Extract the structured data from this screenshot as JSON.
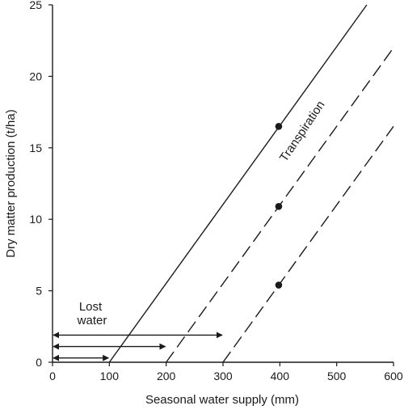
{
  "chart_data": {
    "type": "line",
    "title": "",
    "xlabel": "Seasonal water supply (mm)",
    "ylabel": "Dry matter production (t/ha)",
    "xlim": [
      0,
      600
    ],
    "ylim": [
      0,
      25
    ],
    "x_ticks": [
      0,
      100,
      200,
      300,
      400,
      500,
      600
    ],
    "y_ticks": [
      0,
      5,
      10,
      15,
      20,
      25
    ],
    "grid": false,
    "legend": "none",
    "series": [
      {
        "style": "solid",
        "color": "#1a1a1a",
        "x": [
          100,
          553
        ],
        "y": [
          0,
          25
        ],
        "marker_x": 398,
        "marker_y": 16.5
      },
      {
        "style": "dashed",
        "color": "#1a1a1a",
        "x": [
          200,
          600
        ],
        "y": [
          0,
          22
        ],
        "marker_x": 398,
        "marker_y": 10.9
      },
      {
        "style": "dashed",
        "color": "#1a1a1a",
        "x": [
          300,
          600
        ],
        "y": [
          0,
          16.5
        ],
        "marker_x": 398,
        "marker_y": 5.4
      }
    ],
    "arrows": [
      {
        "from": 0,
        "to": 100,
        "y": 0.3
      },
      {
        "from": 0,
        "to": 200,
        "y": 1.1
      },
      {
        "from": 0,
        "to": 300,
        "y": 1.9
      }
    ],
    "annotations": {
      "lost_water_line1": "Lost",
      "lost_water_line2": "water",
      "transpiration": "Transpiration"
    }
  }
}
